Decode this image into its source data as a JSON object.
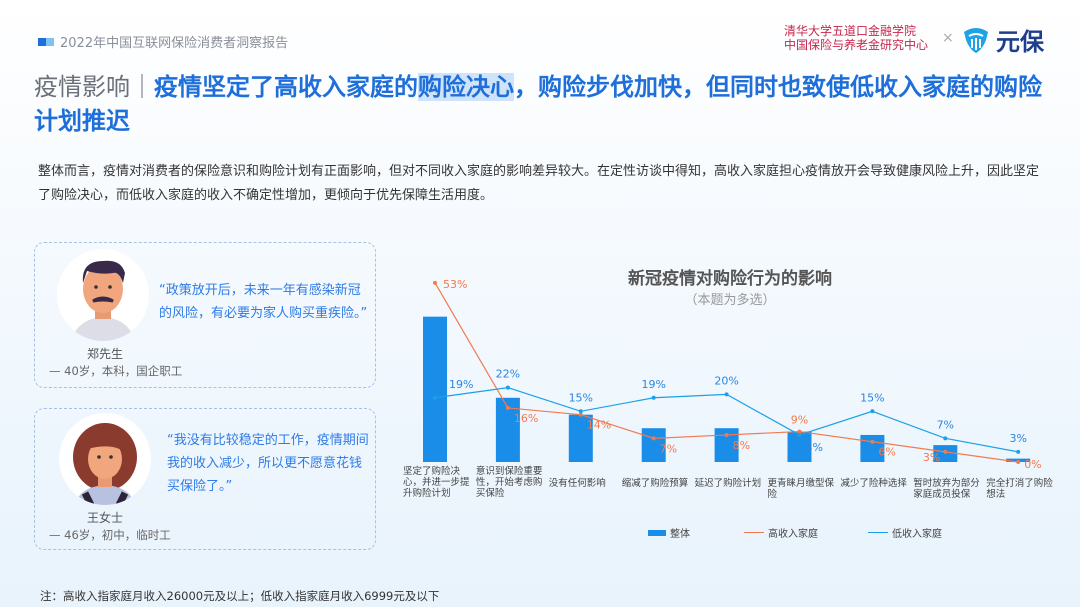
{
  "header": {
    "report_title": "2022年中国互联网保险消费者洞察报告",
    "org_line1": "清华大学五道口金融学院",
    "org_line2": "中国保险与养老金研究中心",
    "times": "×",
    "brand": "元保"
  },
  "title": {
    "prefix": "疫情影响｜",
    "part1": "疫情坚定了高收入家庭的",
    "highlight": "购险决心",
    "part2": "，购险步伐加快，但同时也致使低收入家庭的购险计划推迟"
  },
  "intro": "整体而言，疫情对消费者的保险意识和购险计划有正面影响，但对不同收入家庭的影响差异较大。在定性访谈中得知，高收入家庭担心疫情放开会导致健康风险上升，因此坚定了购险决心，而低收入家庭的收入不确定性增加，更倾向于优先保障生活用度。",
  "personas": [
    {
      "quote": "“政策放开后，未来一年有感染新冠的风险，有必要为家人购买重疾险。”",
      "name": "郑先生",
      "info": "— 40岁，本科，国企职工"
    },
    {
      "quote": "“我没有比较稳定的工作，疫情期间我的收入减少，所以更不愿意花钱买保险了。”",
      "name": "王女士",
      "info": "— 46岁，初中，临时工"
    }
  ],
  "note": "注：高收入指家庭月收入26000元及以上；低收入指家庭月收入6999元及以下",
  "chart_data": {
    "type": "bar+line",
    "title": "新冠疫情对购险行为的影响",
    "subtitle": "（本题为多选）",
    "categories": [
      "坚定了购险决心，并进一步提升购险计划",
      "意识到保险重要性，开始考虑购买保险",
      "没有任何影响",
      "缩减了购险预算",
      "延迟了购险计划",
      "更青睐月缴型保险",
      "减少了险种选择",
      "暂时放弃为部分家庭成员投保",
      "完全打消了购险想法"
    ],
    "series": [
      {
        "name": "整体",
        "type": "bar",
        "color": "#1a8de8",
        "values": [
          43,
          19,
          14,
          10,
          10,
          9,
          8,
          5,
          1
        ]
      },
      {
        "name": "高收入家庭",
        "type": "line",
        "color": "#f27a4f",
        "values": [
          53,
          16,
          14,
          7,
          8,
          9,
          6,
          3,
          0
        ]
      },
      {
        "name": "低收入家庭",
        "type": "line",
        "color": "#1aa0ea",
        "values": [
          19,
          22,
          15,
          19,
          20,
          8,
          15,
          7,
          3
        ]
      }
    ],
    "value_suffix": "%",
    "grid": false,
    "legend": "bottom"
  }
}
